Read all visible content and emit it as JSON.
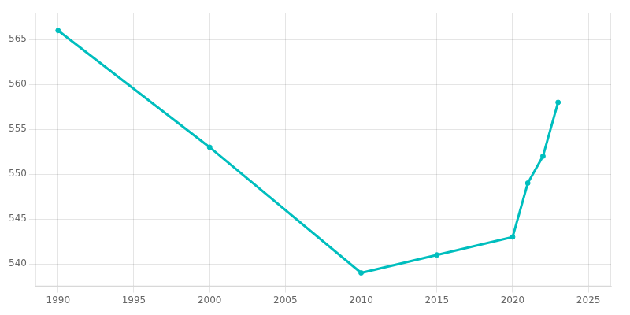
{
  "chart_data": {
    "type": "line",
    "x": [
      1990,
      2000,
      2010,
      2015,
      2020,
      2021,
      2022,
      2023
    ],
    "values": [
      566,
      553,
      539,
      541,
      543,
      549,
      552,
      558
    ],
    "color": "#00BEBE",
    "marker": "circle",
    "xlim": [
      1988.5,
      2026.5
    ],
    "xticks": [
      1990,
      1995,
      2000,
      2005,
      2010,
      2015,
      2020,
      2025
    ],
    "ylim": [
      537.5,
      568
    ],
    "yticks": [
      540,
      545,
      550,
      555,
      560,
      565
    ],
    "grid": true
  }
}
